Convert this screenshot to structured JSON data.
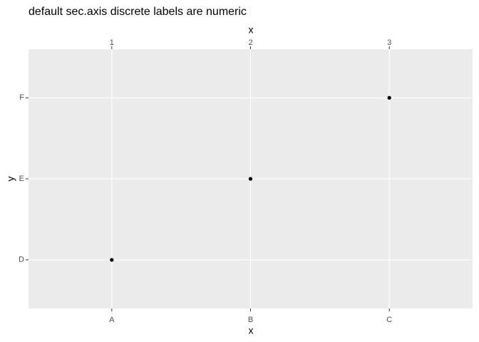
{
  "chart_data": {
    "type": "scatter",
    "title": "default sec.axis discrete labels are numeric",
    "x_label": "x",
    "y_label": "y",
    "x2_label": "x",
    "x_categories": [
      "A",
      "B",
      "C"
    ],
    "y_categories": [
      "D",
      "E",
      "F"
    ],
    "x2ticks": [
      1,
      2,
      3
    ],
    "series": [
      {
        "color": "#000000",
        "x": [
          "A",
          "B",
          "C"
        ],
        "values": [
          "D",
          "E",
          "F"
        ]
      }
    ],
    "grid": true
  }
}
